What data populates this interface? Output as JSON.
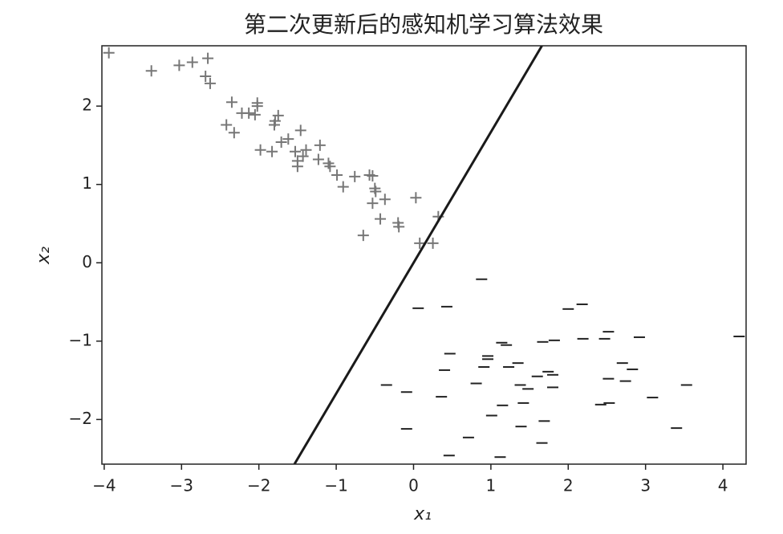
{
  "chart_data": {
    "type": "scatter",
    "title": "第二次更新后的感知机学习算法效果",
    "xlabel": "x₁",
    "ylabel": "x₂",
    "xlim": [
      -4.03,
      4.3
    ],
    "ylim": [
      -2.57,
      2.77
    ],
    "xticks": [
      {
        "value": -4,
        "label": "−4"
      },
      {
        "value": -3,
        "label": "−3"
      },
      {
        "value": -2,
        "label": "−2"
      },
      {
        "value": -1,
        "label": "−1"
      },
      0,
      1,
      2,
      3,
      4
    ],
    "yticks": [
      {
        "value": -2,
        "label": "−2"
      },
      {
        "value": -1,
        "label": "−1"
      },
      0,
      1,
      2
    ],
    "grid": false,
    "series": [
      {
        "marker": "plus",
        "color": "#777777",
        "x": [
          -3.94,
          -3.39,
          -3.03,
          -2.86,
          -2.66,
          -2.69,
          -2.63,
          -2.35,
          -2.42,
          -2.32,
          -2.22,
          -2.13,
          -2.02,
          -2.02,
          -2.05,
          -1.75,
          -1.79,
          -1.8,
          -1.98,
          -1.83,
          -1.71,
          -1.62,
          -1.46,
          -1.53,
          -1.39,
          -1.5,
          -1.5,
          -1.43,
          -1.21,
          -1.23,
          -1.1,
          -1.08,
          -0.99,
          -0.91,
          -0.76,
          -0.57,
          -0.53,
          -0.5,
          -0.49,
          -0.53,
          -0.37,
          -0.43,
          -0.2,
          -0.19,
          -0.65,
          0.03,
          0.32,
          0.08,
          0.25
        ],
        "values": [
          2.68,
          2.45,
          2.52,
          2.56,
          2.61,
          2.38,
          2.29,
          2.05,
          1.76,
          1.66,
          1.91,
          1.91,
          2.04,
          2.0,
          1.89,
          1.88,
          1.81,
          1.76,
          1.44,
          1.42,
          1.54,
          1.58,
          1.69,
          1.42,
          1.44,
          1.3,
          1.23,
          1.36,
          1.5,
          1.32,
          1.27,
          1.23,
          1.12,
          0.97,
          1.1,
          1.12,
          1.11,
          0.95,
          0.91,
          0.76,
          0.81,
          0.56,
          0.51,
          0.46,
          0.35,
          0.83,
          0.59,
          0.25,
          0.25
        ]
      },
      {
        "marker": "minus",
        "color": "#222222",
        "x": [
          0.88,
          0.06,
          0.43,
          2.18,
          2.0,
          4.21,
          2.52,
          2.92,
          2.47,
          2.19,
          1.82,
          1.67,
          1.14,
          1.2,
          0.47,
          0.96,
          0.96,
          1.35,
          2.7,
          0.91,
          1.23,
          0.4,
          2.83,
          1.74,
          1.8,
          1.6,
          2.52,
          2.74,
          0.81,
          -0.35,
          1.38,
          1.48,
          1.8,
          3.53,
          -0.09,
          0.36,
          3.09,
          1.42,
          1.15,
          2.53,
          2.42,
          1.01,
          1.69,
          1.39,
          -0.09,
          3.4,
          0.71,
          1.66,
          0.46,
          1.12
        ],
        "values": [
          -0.21,
          -0.58,
          -0.56,
          -0.53,
          -0.59,
          -0.94,
          -0.88,
          -0.95,
          -0.97,
          -0.97,
          -0.99,
          -1.01,
          -1.02,
          -1.05,
          -1.16,
          -1.19,
          -1.23,
          -1.28,
          -1.28,
          -1.33,
          -1.33,
          -1.37,
          -1.36,
          -1.39,
          -1.43,
          -1.45,
          -1.48,
          -1.51,
          -1.54,
          -1.56,
          -1.56,
          -1.61,
          -1.59,
          -1.56,
          -1.65,
          -1.71,
          -1.72,
          -1.79,
          -1.82,
          -1.79,
          -1.81,
          -1.95,
          -2.02,
          -2.09,
          -2.12,
          -2.11,
          -2.23,
          -2.3,
          -2.46,
          -2.48
        ]
      },
      {
        "marker": "line",
        "color": "#1a1a1a",
        "x": [
          -1.54,
          1.66
        ],
        "values": [
          -2.57,
          2.77
        ]
      }
    ]
  }
}
